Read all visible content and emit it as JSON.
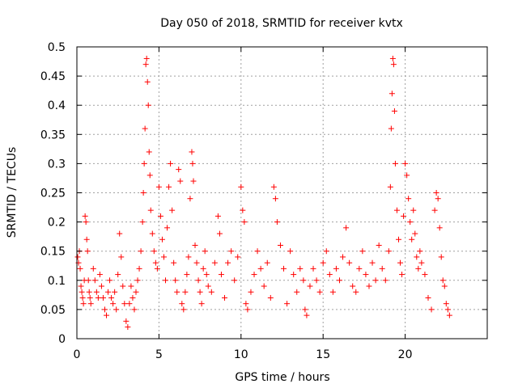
{
  "chart_data": {
    "type": "scatter",
    "title": "Day 050 of 2018, SRMTID for receiver kvtx",
    "xlabel": "GPS time / hours",
    "ylabel": "SRMTID / TECUs",
    "xlim": [
      0,
      25
    ],
    "ylim": [
      0,
      0.5
    ],
    "grid": true,
    "marker": "+",
    "color": "#ff0000",
    "xticks": [
      0,
      5,
      10,
      15,
      20
    ],
    "xtick_labels": [
      "0",
      "5",
      "10",
      "15",
      "20"
    ],
    "yticks": [
      0,
      0.05,
      0.1,
      0.15,
      0.2,
      0.25,
      0.3,
      0.35,
      0.4,
      0.45,
      0.5
    ],
    "ytick_labels": [
      "0",
      "0.05",
      "0.1",
      "0.15",
      "0.2",
      "0.25",
      "0.3",
      "0.35",
      "0.4",
      "0.45",
      "0.5"
    ],
    "series": [
      {
        "name": "SRMTID",
        "points": [
          [
            0.05,
            0.14
          ],
          [
            0.1,
            0.13
          ],
          [
            0.15,
            0.15
          ],
          [
            0.2,
            0.12
          ],
          [
            0.25,
            0.09
          ],
          [
            0.3,
            0.08
          ],
          [
            0.35,
            0.07
          ],
          [
            0.4,
            0.06
          ],
          [
            0.45,
            0.1
          ],
          [
            0.5,
            0.21
          ],
          [
            0.55,
            0.2
          ],
          [
            0.6,
            0.17
          ],
          [
            0.65,
            0.15
          ],
          [
            0.7,
            0.1
          ],
          [
            0.75,
            0.08
          ],
          [
            0.8,
            0.07
          ],
          [
            0.85,
            0.06
          ],
          [
            1.0,
            0.12
          ],
          [
            1.1,
            0.1
          ],
          [
            1.2,
            0.08
          ],
          [
            1.3,
            0.07
          ],
          [
            1.4,
            0.11
          ],
          [
            1.5,
            0.09
          ],
          [
            1.6,
            0.07
          ],
          [
            1.7,
            0.05
          ],
          [
            1.8,
            0.04
          ],
          [
            1.9,
            0.08
          ],
          [
            2.0,
            0.1
          ],
          [
            2.1,
            0.07
          ],
          [
            2.2,
            0.06
          ],
          [
            2.3,
            0.08
          ],
          [
            2.4,
            0.05
          ],
          [
            2.5,
            0.11
          ],
          [
            2.6,
            0.18
          ],
          [
            2.7,
            0.14
          ],
          [
            2.8,
            0.09
          ],
          [
            2.9,
            0.06
          ],
          [
            3.0,
            0.03
          ],
          [
            3.1,
            0.02
          ],
          [
            3.2,
            0.06
          ],
          [
            3.3,
            0.09
          ],
          [
            3.4,
            0.07
          ],
          [
            3.5,
            0.05
          ],
          [
            3.6,
            0.08
          ],
          [
            3.7,
            0.1
          ],
          [
            3.8,
            0.12
          ],
          [
            3.9,
            0.15
          ],
          [
            4.0,
            0.2
          ],
          [
            4.05,
            0.25
          ],
          [
            4.1,
            0.3
          ],
          [
            4.15,
            0.36
          ],
          [
            4.2,
            0.47
          ],
          [
            4.25,
            0.48
          ],
          [
            4.3,
            0.44
          ],
          [
            4.35,
            0.4
          ],
          [
            4.4,
            0.32
          ],
          [
            4.45,
            0.28
          ],
          [
            4.5,
            0.22
          ],
          [
            4.6,
            0.18
          ],
          [
            4.7,
            0.15
          ],
          [
            4.8,
            0.13
          ],
          [
            4.9,
            0.12
          ],
          [
            5.0,
            0.26
          ],
          [
            5.1,
            0.21
          ],
          [
            5.2,
            0.17
          ],
          [
            5.3,
            0.14
          ],
          [
            5.4,
            0.1
          ],
          [
            5.5,
            0.19
          ],
          [
            5.6,
            0.26
          ],
          [
            5.7,
            0.3
          ],
          [
            5.8,
            0.22
          ],
          [
            5.9,
            0.13
          ],
          [
            6.0,
            0.1
          ],
          [
            6.1,
            0.08
          ],
          [
            6.2,
            0.29
          ],
          [
            6.3,
            0.27
          ],
          [
            6.4,
            0.06
          ],
          [
            6.5,
            0.05
          ],
          [
            6.6,
            0.08
          ],
          [
            6.7,
            0.11
          ],
          [
            6.8,
            0.14
          ],
          [
            6.9,
            0.24
          ],
          [
            7.0,
            0.32
          ],
          [
            7.05,
            0.3
          ],
          [
            7.1,
            0.27
          ],
          [
            7.2,
            0.16
          ],
          [
            7.3,
            0.13
          ],
          [
            7.4,
            0.1
          ],
          [
            7.5,
            0.08
          ],
          [
            7.6,
            0.06
          ],
          [
            7.7,
            0.12
          ],
          [
            7.8,
            0.15
          ],
          [
            7.9,
            0.11
          ],
          [
            8.0,
            0.09
          ],
          [
            8.2,
            0.08
          ],
          [
            8.4,
            0.13
          ],
          [
            8.6,
            0.21
          ],
          [
            8.7,
            0.18
          ],
          [
            8.8,
            0.11
          ],
          [
            9.0,
            0.07
          ],
          [
            9.2,
            0.13
          ],
          [
            9.4,
            0.15
          ],
          [
            9.6,
            0.1
          ],
          [
            9.8,
            0.14
          ],
          [
            10.0,
            0.26
          ],
          [
            10.1,
            0.22
          ],
          [
            10.2,
            0.2
          ],
          [
            10.3,
            0.06
          ],
          [
            10.4,
            0.05
          ],
          [
            10.6,
            0.08
          ],
          [
            10.8,
            0.11
          ],
          [
            11.0,
            0.15
          ],
          [
            11.2,
            0.12
          ],
          [
            11.4,
            0.09
          ],
          [
            11.6,
            0.13
          ],
          [
            11.8,
            0.07
          ],
          [
            12.0,
            0.26
          ],
          [
            12.1,
            0.24
          ],
          [
            12.2,
            0.2
          ],
          [
            12.4,
            0.16
          ],
          [
            12.6,
            0.12
          ],
          [
            12.8,
            0.06
          ],
          [
            13.0,
            0.15
          ],
          [
            13.2,
            0.11
          ],
          [
            13.4,
            0.08
          ],
          [
            13.6,
            0.12
          ],
          [
            13.8,
            0.1
          ],
          [
            13.9,
            0.05
          ],
          [
            14.0,
            0.04
          ],
          [
            14.2,
            0.09
          ],
          [
            14.4,
            0.12
          ],
          [
            14.6,
            0.1
          ],
          [
            14.8,
            0.08
          ],
          [
            15.0,
            0.13
          ],
          [
            15.2,
            0.15
          ],
          [
            15.4,
            0.11
          ],
          [
            15.6,
            0.08
          ],
          [
            15.8,
            0.12
          ],
          [
            16.0,
            0.1
          ],
          [
            16.2,
            0.14
          ],
          [
            16.4,
            0.19
          ],
          [
            16.6,
            0.13
          ],
          [
            16.8,
            0.09
          ],
          [
            17.0,
            0.08
          ],
          [
            17.2,
            0.12
          ],
          [
            17.4,
            0.15
          ],
          [
            17.6,
            0.11
          ],
          [
            17.8,
            0.09
          ],
          [
            18.0,
            0.13
          ],
          [
            18.2,
            0.1
          ],
          [
            18.4,
            0.16
          ],
          [
            18.6,
            0.12
          ],
          [
            18.8,
            0.1
          ],
          [
            19.0,
            0.15
          ],
          [
            19.1,
            0.26
          ],
          [
            19.15,
            0.36
          ],
          [
            19.2,
            0.42
          ],
          [
            19.25,
            0.48
          ],
          [
            19.3,
            0.47
          ],
          [
            19.35,
            0.39
          ],
          [
            19.4,
            0.3
          ],
          [
            19.5,
            0.22
          ],
          [
            19.6,
            0.17
          ],
          [
            19.7,
            0.13
          ],
          [
            19.8,
            0.11
          ],
          [
            19.9,
            0.21
          ],
          [
            20.0,
            0.3
          ],
          [
            20.1,
            0.28
          ],
          [
            20.2,
            0.24
          ],
          [
            20.3,
            0.2
          ],
          [
            20.4,
            0.17
          ],
          [
            20.5,
            0.22
          ],
          [
            20.6,
            0.18
          ],
          [
            20.7,
            0.14
          ],
          [
            20.8,
            0.12
          ],
          [
            20.9,
            0.15
          ],
          [
            21.0,
            0.13
          ],
          [
            21.2,
            0.11
          ],
          [
            21.4,
            0.07
          ],
          [
            21.6,
            0.05
          ],
          [
            21.8,
            0.22
          ],
          [
            21.9,
            0.25
          ],
          [
            22.0,
            0.24
          ],
          [
            22.1,
            0.19
          ],
          [
            22.2,
            0.14
          ],
          [
            22.3,
            0.1
          ],
          [
            22.4,
            0.09
          ],
          [
            22.5,
            0.06
          ],
          [
            22.6,
            0.05
          ],
          [
            22.7,
            0.04
          ]
        ]
      }
    ]
  }
}
